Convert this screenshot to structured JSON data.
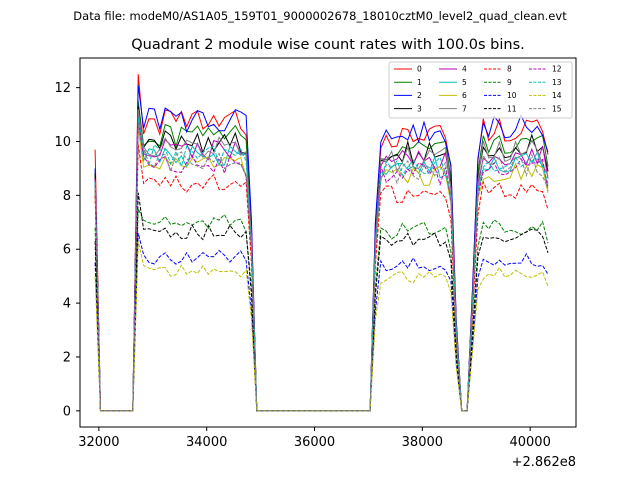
{
  "chart_data": {
    "type": "line",
    "suptitle": "Data file: modeM0/AS1A05_159T01_9000002678_18010cztM0_level2_quad_clean.evt",
    "title": "Quadrant 2 module wise count rates with 100.0s bins.",
    "xlabel": "",
    "ylabel": "",
    "x_offset_label": "+2.862e8",
    "xlim": [
      31650,
      40850
    ],
    "ylim": [
      -0.6,
      13.1
    ],
    "x_ticks": [
      32000,
      34000,
      36000,
      38000,
      40000
    ],
    "x_tick_labels": [
      "32000",
      "34000",
      "36000",
      "38000",
      "40000"
    ],
    "y_ticks": [
      0,
      2,
      4,
      6,
      8,
      10,
      12
    ],
    "y_tick_labels": [
      "0",
      "2",
      "4",
      "6",
      "8",
      "10",
      "12"
    ],
    "legend_position": "top-right",
    "shape": {
      "x": [
        31930,
        32030,
        32650,
        32720,
        32820,
        34700,
        34790,
        34930,
        37030,
        37130,
        37230,
        38470,
        38570,
        38670,
        38870,
        38970,
        39070,
        40320,
        40420
      ],
      "y": [
        0.78,
        0.0,
        0.0,
        0.03,
        1.0,
        1.0,
        0.92,
        0.0,
        0.0,
        0.65,
        0.95,
        0.96,
        0.77,
        0.0,
        0.0,
        0.7,
        0.98,
        0.98,
        0.07
      ]
    },
    "series": [
      {
        "name": "0",
        "color": "#ff0000",
        "style": "solid",
        "start": 9.7,
        "level": 10.7,
        "peak": 12.5
      },
      {
        "name": "1",
        "color": "#008000",
        "style": "solid",
        "start": 8.9,
        "level": 10.2,
        "peak": 11.5
      },
      {
        "name": "2",
        "color": "#0000ff",
        "style": "solid",
        "start": 9.0,
        "level": 10.8,
        "peak": 12.1
      },
      {
        "name": "3",
        "color": "#000000",
        "style": "solid",
        "start": 8.8,
        "level": 10.0,
        "peak": 11.3
      },
      {
        "name": "4",
        "color": "#bf00bf",
        "style": "solid",
        "start": 8.6,
        "level": 9.7,
        "peak": 11.0
      },
      {
        "name": "5",
        "color": "#00bfbf",
        "style": "solid",
        "start": 8.4,
        "level": 9.4,
        "peak": 10.8
      },
      {
        "name": "6",
        "color": "#bfbf00",
        "style": "solid",
        "start": 8.2,
        "level": 9.1,
        "peak": 10.5
      },
      {
        "name": "7",
        "color": "#808080",
        "style": "solid",
        "start": 8.5,
        "level": 9.8,
        "peak": 11.2
      },
      {
        "name": "8",
        "color": "#ff0000",
        "style": "dashed",
        "start": 8.0,
        "level": 8.4,
        "peak": 9.9
      },
      {
        "name": "9",
        "color": "#008000",
        "style": "dashed",
        "start": 6.8,
        "level": 7.0,
        "peak": 7.5
      },
      {
        "name": "10",
        "color": "#0000ff",
        "style": "dashed",
        "start": 5.5,
        "level": 5.7,
        "peak": 6.6
      },
      {
        "name": "11",
        "color": "#000000",
        "style": "dashed",
        "start": 6.3,
        "level": 6.6,
        "peak": 8.1
      },
      {
        "name": "12",
        "color": "#bf00bf",
        "style": "dashed",
        "start": 8.6,
        "level": 9.2,
        "peak": 10.7
      },
      {
        "name": "13",
        "color": "#00bfbf",
        "style": "dashed",
        "start": 8.5,
        "level": 9.5,
        "peak": 10.9
      },
      {
        "name": "14",
        "color": "#bfbf00",
        "style": "dashed",
        "start": 5.0,
        "level": 5.2,
        "peak": 6.3
      },
      {
        "name": "15",
        "color": "#808080",
        "style": "dashed",
        "start": 8.3,
        "level": 9.3,
        "peak": 10.6
      }
    ]
  }
}
